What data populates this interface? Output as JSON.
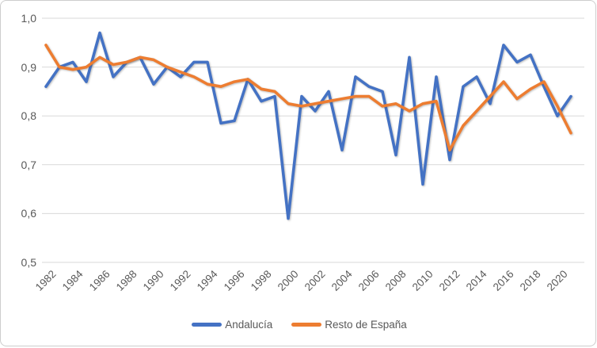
{
  "chart_data": {
    "type": "line",
    "x": [
      1982,
      1983,
      1984,
      1985,
      1986,
      1987,
      1988,
      1989,
      1990,
      1991,
      1992,
      1993,
      1994,
      1995,
      1996,
      1997,
      1998,
      1999,
      2000,
      2001,
      2002,
      2003,
      2004,
      2005,
      2006,
      2007,
      2008,
      2009,
      2010,
      2011,
      2012,
      2013,
      2014,
      2015,
      2016,
      2017,
      2018,
      2019,
      2020,
      2021
    ],
    "series": [
      {
        "name": "Andalucía",
        "color": "#4472C4",
        "values": [
          0.86,
          0.9,
          0.91,
          0.87,
          0.97,
          0.88,
          0.91,
          0.92,
          0.865,
          0.9,
          0.88,
          0.91,
          0.91,
          0.785,
          0.79,
          0.875,
          0.83,
          0.84,
          0.59,
          0.84,
          0.81,
          0.85,
          0.73,
          0.88,
          0.86,
          0.85,
          0.72,
          0.92,
          0.66,
          0.88,
          0.71,
          0.86,
          0.88,
          0.825,
          0.945,
          0.91,
          0.925,
          0.86,
          0.8,
          0.84
        ]
      },
      {
        "name": "Resto de España",
        "color": "#ED7D31",
        "values": [
          0.945,
          0.9,
          0.895,
          0.9,
          0.92,
          0.905,
          0.91,
          0.92,
          0.915,
          0.9,
          0.89,
          0.88,
          0.865,
          0.86,
          0.87,
          0.875,
          0.855,
          0.85,
          0.825,
          0.82,
          0.825,
          0.83,
          0.835,
          0.84,
          0.84,
          0.82,
          0.825,
          0.81,
          0.825,
          0.83,
          0.73,
          0.78,
          0.81,
          0.84,
          0.87,
          0.835,
          0.855,
          0.87,
          0.82,
          0.765
        ]
      }
    ],
    "title": "",
    "xlabel": "",
    "ylabel": "",
    "ylim": [
      0.5,
      1.0
    ],
    "ytick_labels": [
      "1,0",
      "0,9",
      "0,8",
      "0,7",
      "0,6",
      "0,5"
    ],
    "xtick_labels": [
      "1982",
      "1984",
      "1986",
      "1988",
      "1990",
      "1992",
      "1994",
      "1996",
      "1998",
      "2000",
      "2002",
      "2004",
      "2006",
      "2008",
      "2010",
      "2012",
      "2014",
      "2016",
      "2018",
      "2020"
    ],
    "grid": "horizontal",
    "legend_position": "bottom",
    "decimal_separator": ","
  },
  "colors": {
    "gridline": "#d9d9d9",
    "axis_text": "#595959",
    "background": "#ffffff",
    "border": "#cdcdcd"
  }
}
